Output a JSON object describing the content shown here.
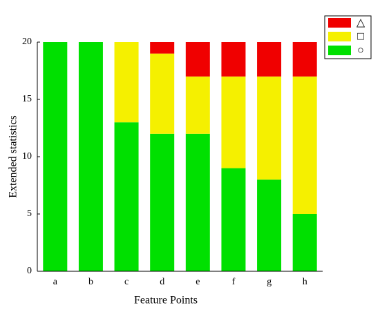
{
  "chart_data": {
    "type": "stacked-bar",
    "x_label": "Feature Points",
    "y_label": "Extended statistics",
    "categories": [
      "a",
      "b",
      "c",
      "d",
      "e",
      "f",
      "g",
      "h"
    ],
    "series": [
      {
        "name": "○",
        "color": "#00e000",
        "values": [
          20,
          20,
          13,
          12,
          12,
          9,
          8,
          5
        ]
      },
      {
        "name": "□",
        "color": "#f5f000",
        "values": [
          0,
          0,
          7,
          7,
          5,
          8,
          9,
          12
        ]
      },
      {
        "name": "△",
        "color": "#f00000",
        "values": [
          0,
          0,
          0,
          1,
          3,
          3,
          3,
          3
        ]
      }
    ],
    "ylim": [
      0,
      20
    ],
    "yticks": [
      0,
      5,
      10,
      15,
      20
    ],
    "grid": false,
    "legend": "top-right"
  }
}
